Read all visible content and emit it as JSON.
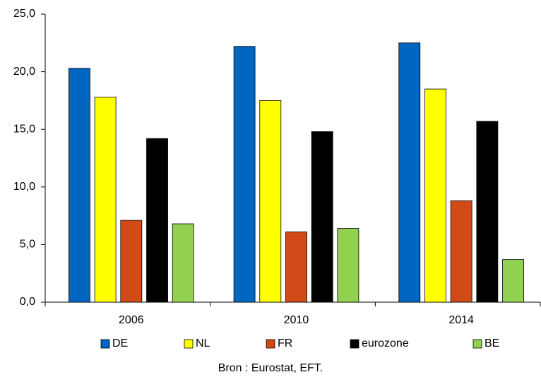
{
  "chart_data": {
    "type": "bar",
    "categories": [
      "2006",
      "2010",
      "2014"
    ],
    "series": [
      {
        "name": "DE",
        "color": "#0066c0",
        "values": [
          20.3,
          22.2,
          22.5
        ]
      },
      {
        "name": "NL",
        "color": "#ffff00",
        "values": [
          17.8,
          17.5,
          18.5
        ]
      },
      {
        "name": "FR",
        "color": "#d14a17",
        "values": [
          7.1,
          6.1,
          8.8
        ]
      },
      {
        "name": "eurozone",
        "color": "#000000",
        "values": [
          14.2,
          14.8,
          15.7
        ]
      },
      {
        "name": "BE",
        "color": "#92d050",
        "values": [
          6.8,
          6.4,
          3.7
        ]
      }
    ],
    "ylim": [
      0,
      25
    ],
    "yticks": [
      {
        "value": 0,
        "label": "0,0"
      },
      {
        "value": 5,
        "label": "5,0"
      },
      {
        "value": 10,
        "label": "10,0"
      },
      {
        "value": 15,
        "label": "15,0"
      },
      {
        "value": 20,
        "label": "20,0"
      },
      {
        "value": 25,
        "label": "25,0"
      }
    ],
    "grid": false,
    "legend": "bottom",
    "source": "Bron : Eurostat, EFT."
  }
}
